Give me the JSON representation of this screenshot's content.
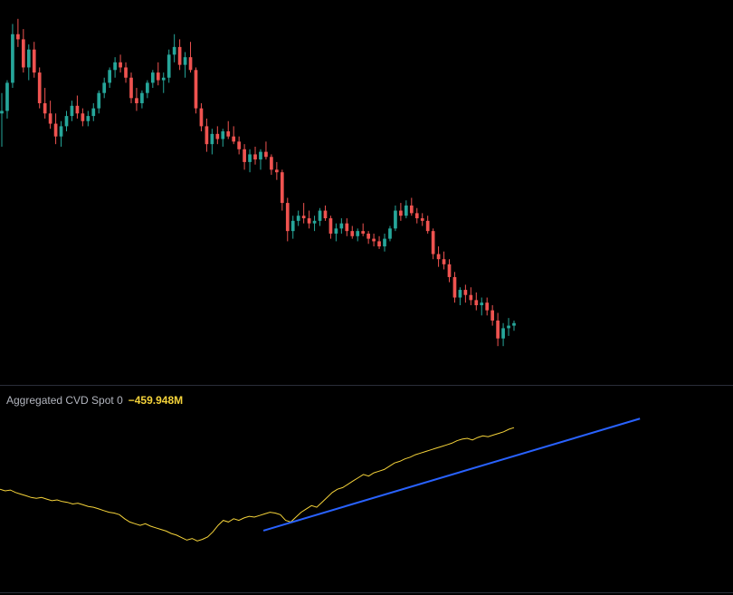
{
  "indicator": {
    "name": "Aggregated CVD Spot 0",
    "value": "−459.948M"
  },
  "colors": {
    "background": "#000000",
    "up": "#26a69a",
    "down": "#ef5350",
    "cvd_line": "#f5d33a",
    "trendline": "#2962ff",
    "divider": "#2a2e39"
  },
  "chart_data": [
    {
      "type": "candlestick",
      "pane": "price",
      "title": "",
      "ohlc_key": [
        "open",
        "high",
        "low",
        "close"
      ],
      "candles": [
        [
          0.62,
          0.7,
          0.49,
          0.63
        ],
        [
          0.63,
          0.75,
          0.6,
          0.74
        ],
        [
          0.74,
          0.97,
          0.72,
          0.93
        ],
        [
          0.93,
          0.99,
          0.88,
          0.91
        ],
        [
          0.91,
          0.95,
          0.78,
          0.8
        ],
        [
          0.8,
          0.89,
          0.75,
          0.87
        ],
        [
          0.87,
          0.9,
          0.76,
          0.78
        ],
        [
          0.78,
          0.8,
          0.64,
          0.66
        ],
        [
          0.66,
          0.72,
          0.6,
          0.62
        ],
        [
          0.62,
          0.67,
          0.56,
          0.58
        ],
        [
          0.58,
          0.62,
          0.5,
          0.53
        ],
        [
          0.53,
          0.59,
          0.49,
          0.57
        ],
        [
          0.57,
          0.63,
          0.55,
          0.61
        ],
        [
          0.61,
          0.67,
          0.59,
          0.65
        ],
        [
          0.65,
          0.69,
          0.6,
          0.62
        ],
        [
          0.62,
          0.64,
          0.57,
          0.59
        ],
        [
          0.59,
          0.63,
          0.57,
          0.61
        ],
        [
          0.61,
          0.66,
          0.59,
          0.64
        ],
        [
          0.64,
          0.71,
          0.62,
          0.7
        ],
        [
          0.7,
          0.76,
          0.68,
          0.74
        ],
        [
          0.74,
          0.8,
          0.72,
          0.79
        ],
        [
          0.79,
          0.84,
          0.76,
          0.82
        ],
        [
          0.82,
          0.85,
          0.78,
          0.8
        ],
        [
          0.8,
          0.82,
          0.74,
          0.76
        ],
        [
          0.76,
          0.78,
          0.66,
          0.68
        ],
        [
          0.68,
          0.72,
          0.63,
          0.66
        ],
        [
          0.66,
          0.71,
          0.64,
          0.7
        ],
        [
          0.7,
          0.75,
          0.68,
          0.74
        ],
        [
          0.74,
          0.79,
          0.72,
          0.78
        ],
        [
          0.78,
          0.82,
          0.73,
          0.75
        ],
        [
          0.75,
          0.78,
          0.7,
          0.76
        ],
        [
          0.76,
          0.87,
          0.74,
          0.85
        ],
        [
          0.85,
          0.93,
          0.82,
          0.88
        ],
        [
          0.88,
          0.91,
          0.79,
          0.81
        ],
        [
          0.81,
          0.86,
          0.76,
          0.84
        ],
        [
          0.84,
          0.9,
          0.78,
          0.79
        ],
        [
          0.79,
          0.8,
          0.62,
          0.64
        ],
        [
          0.64,
          0.66,
          0.55,
          0.57
        ],
        [
          0.57,
          0.6,
          0.47,
          0.5
        ],
        [
          0.5,
          0.56,
          0.46,
          0.54
        ],
        [
          0.54,
          0.57,
          0.5,
          0.52
        ],
        [
          0.52,
          0.56,
          0.49,
          0.55
        ],
        [
          0.55,
          0.59,
          0.52,
          0.53
        ],
        [
          0.53,
          0.57,
          0.5,
          0.51
        ],
        [
          0.51,
          0.53,
          0.46,
          0.48
        ],
        [
          0.48,
          0.5,
          0.4,
          0.43
        ],
        [
          0.43,
          0.48,
          0.39,
          0.46
        ],
        [
          0.46,
          0.49,
          0.42,
          0.44
        ],
        [
          0.44,
          0.48,
          0.4,
          0.47
        ],
        [
          0.47,
          0.51,
          0.44,
          0.45
        ],
        [
          0.45,
          0.46,
          0.38,
          0.4
        ],
        [
          0.4,
          0.43,
          0.36,
          0.39
        ],
        [
          0.39,
          0.4,
          0.24,
          0.27
        ],
        [
          0.27,
          0.29,
          0.12,
          0.16
        ],
        [
          0.16,
          0.22,
          0.13,
          0.2
        ],
        [
          0.2,
          0.24,
          0.18,
          0.22
        ],
        [
          0.22,
          0.27,
          0.19,
          0.21
        ],
        [
          0.21,
          0.24,
          0.17,
          0.19
        ],
        [
          0.19,
          0.22,
          0.16,
          0.2
        ],
        [
          0.2,
          0.25,
          0.18,
          0.24
        ],
        [
          0.24,
          0.26,
          0.2,
          0.21
        ],
        [
          0.21,
          0.22,
          0.13,
          0.15
        ],
        [
          0.15,
          0.19,
          0.12,
          0.17
        ],
        [
          0.17,
          0.21,
          0.15,
          0.19
        ],
        [
          0.19,
          0.21,
          0.14,
          0.16
        ],
        [
          0.16,
          0.18,
          0.13,
          0.14
        ],
        [
          0.14,
          0.17,
          0.12,
          0.16
        ],
        [
          0.16,
          0.19,
          0.14,
          0.15
        ],
        [
          0.15,
          0.16,
          0.11,
          0.13
        ],
        [
          0.13,
          0.15,
          0.1,
          0.12
        ],
        [
          0.12,
          0.14,
          0.09,
          0.1
        ],
        [
          0.1,
          0.15,
          0.08,
          0.13
        ],
        [
          0.13,
          0.18,
          0.12,
          0.17
        ],
        [
          0.17,
          0.26,
          0.16,
          0.24
        ],
        [
          0.24,
          0.27,
          0.2,
          0.22
        ],
        [
          0.22,
          0.28,
          0.21,
          0.26
        ],
        [
          0.26,
          0.29,
          0.22,
          0.23
        ],
        [
          0.23,
          0.25,
          0.19,
          0.21
        ],
        [
          0.21,
          0.23,
          0.18,
          0.2
        ],
        [
          0.2,
          0.22,
          0.15,
          0.16
        ],
        [
          0.16,
          0.17,
          0.05,
          0.07
        ],
        [
          0.07,
          0.1,
          0.02,
          0.05
        ],
        [
          0.05,
          0.08,
          0.01,
          0.03
        ],
        [
          0.03,
          0.05,
          -0.04,
          -0.02
        ],
        [
          -0.02,
          0.0,
          -0.12,
          -0.1
        ],
        [
          -0.1,
          -0.06,
          -0.13,
          -0.07
        ],
        [
          -0.07,
          -0.05,
          -0.12,
          -0.09
        ],
        [
          -0.09,
          -0.06,
          -0.13,
          -0.11
        ],
        [
          -0.11,
          -0.08,
          -0.15,
          -0.13
        ],
        [
          -0.13,
          -0.1,
          -0.17,
          -0.12
        ],
        [
          -0.12,
          -0.1,
          -0.17,
          -0.15
        ],
        [
          -0.15,
          -0.13,
          -0.21,
          -0.19
        ],
        [
          -0.19,
          -0.16,
          -0.29,
          -0.26
        ],
        [
          -0.26,
          -0.2,
          -0.29,
          -0.22
        ],
        [
          -0.22,
          -0.18,
          -0.25,
          -0.21
        ],
        [
          -0.21,
          -0.19,
          -0.23,
          -0.2
        ]
      ]
    },
    {
      "type": "line",
      "pane": "indicator",
      "title": "Aggregated CVD Spot 0",
      "series": [
        {
          "values": [
            0.66,
            0.64,
            0.65,
            0.62,
            0.6,
            0.58,
            0.56,
            0.55,
            0.56,
            0.54,
            0.52,
            0.53,
            0.51,
            0.5,
            0.48,
            0.49,
            0.47,
            0.45,
            0.44,
            0.42,
            0.4,
            0.38,
            0.37,
            0.35,
            0.3,
            0.26,
            0.24,
            0.22,
            0.24,
            0.21,
            0.19,
            0.17,
            0.15,
            0.12,
            0.1,
            0.07,
            0.04,
            0.06,
            0.03,
            0.05,
            0.08,
            0.14,
            0.22,
            0.28,
            0.26,
            0.3,
            0.28,
            0.31,
            0.33,
            0.32,
            0.34,
            0.36,
            0.38,
            0.37,
            0.35,
            0.28,
            0.26,
            0.32,
            0.38,
            0.42,
            0.46,
            0.44,
            0.5,
            0.56,
            0.62,
            0.66,
            0.68,
            0.72,
            0.76,
            0.8,
            0.84,
            0.82,
            0.86,
            0.88,
            0.9,
            0.94,
            0.98,
            1.0,
            1.03,
            1.05,
            1.08,
            1.1,
            1.12,
            1.14,
            1.16,
            1.18,
            1.2,
            1.22,
            1.25,
            1.27,
            1.28,
            1.26,
            1.29,
            1.31,
            1.3,
            1.32,
            1.34,
            1.36,
            1.39,
            1.41
          ]
        }
      ],
      "trendline": {
        "from": [
          0.5125,
          0.155
        ],
        "to": [
          1.245,
          1.52
        ]
      }
    }
  ]
}
